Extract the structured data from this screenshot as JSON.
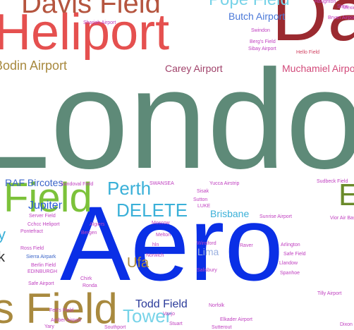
{
  "words": [
    {
      "text": "London",
      "color": "#5e8a78"
    },
    {
      "text": "Aero",
      "color": "#0a2fe6"
    },
    {
      "text": "Da",
      "color": "#9b2a30"
    },
    {
      "text": "Heliport",
      "color": "#e5504f"
    },
    {
      "text": "Davis Field",
      "color": "#b5553f"
    },
    {
      "text": "Field",
      "color": "#7cc23a"
    },
    {
      "text": "s Field",
      "color": "#a8893e"
    },
    {
      "text": "Pope Field",
      "color": "#77d3e8"
    },
    {
      "text": "Butch Airport",
      "color": "#4a78d8"
    },
    {
      "text": "Bodin Airport",
      "color": "#a8893e"
    },
    {
      "text": "Carey Airport",
      "color": "#a0426a"
    },
    {
      "text": "Muchamiel Airport",
      "color": "#d24a7a"
    },
    {
      "text": "Perth",
      "color": "#3ab0d8"
    },
    {
      "text": "DELETE",
      "color": "#3ab0d8"
    },
    {
      "text": "RAF Bircotes",
      "color": "#3a64c8"
    },
    {
      "text": "Jupiter",
      "color": "#2a5ad8"
    },
    {
      "text": "Brisbane",
      "color": "#3ab0d8"
    },
    {
      "text": "Ufa",
      "color": "#a8893e"
    },
    {
      "text": "Todd Field",
      "color": "#2a3a9a"
    },
    {
      "text": "Tower",
      "color": "#77d3e8"
    },
    {
      "text": "Lima",
      "color": "#9ab0e0"
    },
    {
      "text": "E",
      "color": "#6a8a2a"
    },
    {
      "text": "y",
      "color": "#3ab0d8"
    },
    {
      "text": "k",
      "color": "#333333"
    },
    {
      "text": "Swindon",
      "color": "#c040c0"
    },
    {
      "text": "Berg's Field",
      "color": "#c040c0"
    },
    {
      "text": "Sibay Airport",
      "color": "#c040c0"
    },
    {
      "text": "Hello Field",
      "color": "#d04060"
    },
    {
      "text": "Bryan Airport",
      "color": "#c040c0"
    },
    {
      "text": "Sharjah Airport",
      "color": "#c040c0"
    },
    {
      "text": "Mexico",
      "color": "#c040c0"
    },
    {
      "text": "Sandoval Field",
      "color": "#c040c0"
    },
    {
      "text": "SWANSEA",
      "color": "#c040c0"
    },
    {
      "text": "Yucca Airstrip",
      "color": "#c040c0"
    },
    {
      "text": "Sudbeck Field",
      "color": "#c040c0"
    },
    {
      "text": "Sisak",
      "color": "#c040c0"
    },
    {
      "text": "Sutton",
      "color": "#c040c0"
    },
    {
      "text": "LUKE",
      "color": "#c040c0"
    },
    {
      "text": "Server Field",
      "color": "#c040c0"
    },
    {
      "text": "Cchcc Heliport",
      "color": "#c040c0"
    },
    {
      "text": "Algiers",
      "color": "#c040c0"
    },
    {
      "text": "Moscow",
      "color": "#c040c0"
    },
    {
      "text": "Pontefract",
      "color": "#c040c0"
    },
    {
      "text": "Bergen",
      "color": "#c040c0"
    },
    {
      "text": "Sunrise Airport",
      "color": "#c040c0"
    },
    {
      "text": "Vior Air Base",
      "color": "#c040c0"
    },
    {
      "text": "Melton",
      "color": "#c040c0"
    },
    {
      "text": "Winsford",
      "color": "#c040c0"
    },
    {
      "text": "Raver",
      "color": "#c040c0"
    },
    {
      "text": "Arlington",
      "color": "#c040c0"
    },
    {
      "text": "Ross Field",
      "color": "#c040c0"
    },
    {
      "text": "hln",
      "color": "#c040c0"
    },
    {
      "text": "Sierra Airpark",
      "color": "#3a64c8"
    },
    {
      "text": "Norwich",
      "color": "#c040c0"
    },
    {
      "text": "Safe Field",
      "color": "#c040c0"
    },
    {
      "text": "Llandow",
      "color": "#c040c0"
    },
    {
      "text": "Berlin Field",
      "color": "#c040c0"
    },
    {
      "text": "EDINBURGH",
      "color": "#c040c0"
    },
    {
      "text": "Salisbury",
      "color": "#c040c0"
    },
    {
      "text": "Spanhoe",
      "color": "#c040c0"
    },
    {
      "text": "Chirk",
      "color": "#c040c0"
    },
    {
      "text": "Safe Airport",
      "color": "#c040c0"
    },
    {
      "text": "Ronda",
      "color": "#c040c0"
    },
    {
      "text": "Tilly Airport",
      "color": "#c040c0"
    },
    {
      "text": "Norfolk",
      "color": "#c040c0"
    },
    {
      "text": "Vaxjo",
      "color": "#c040c0"
    },
    {
      "text": "Fett's Field",
      "color": "#c040c0"
    },
    {
      "text": "Elkader Airport",
      "color": "#c040c0"
    },
    {
      "text": "Amber Airport",
      "color": "#c040c0"
    },
    {
      "text": "Stuart",
      "color": "#c040c0"
    },
    {
      "text": "Yary",
      "color": "#c040c0"
    },
    {
      "text": "Southport",
      "color": "#c040c0"
    },
    {
      "text": "Sutterout",
      "color": "#c040c0"
    },
    {
      "text": "Dixon",
      "color": "#c040c0"
    },
    {
      "text": "Haughton",
      "color": "#c040c0"
    },
    {
      "text": "Stow",
      "color": "#c040c0"
    }
  ]
}
